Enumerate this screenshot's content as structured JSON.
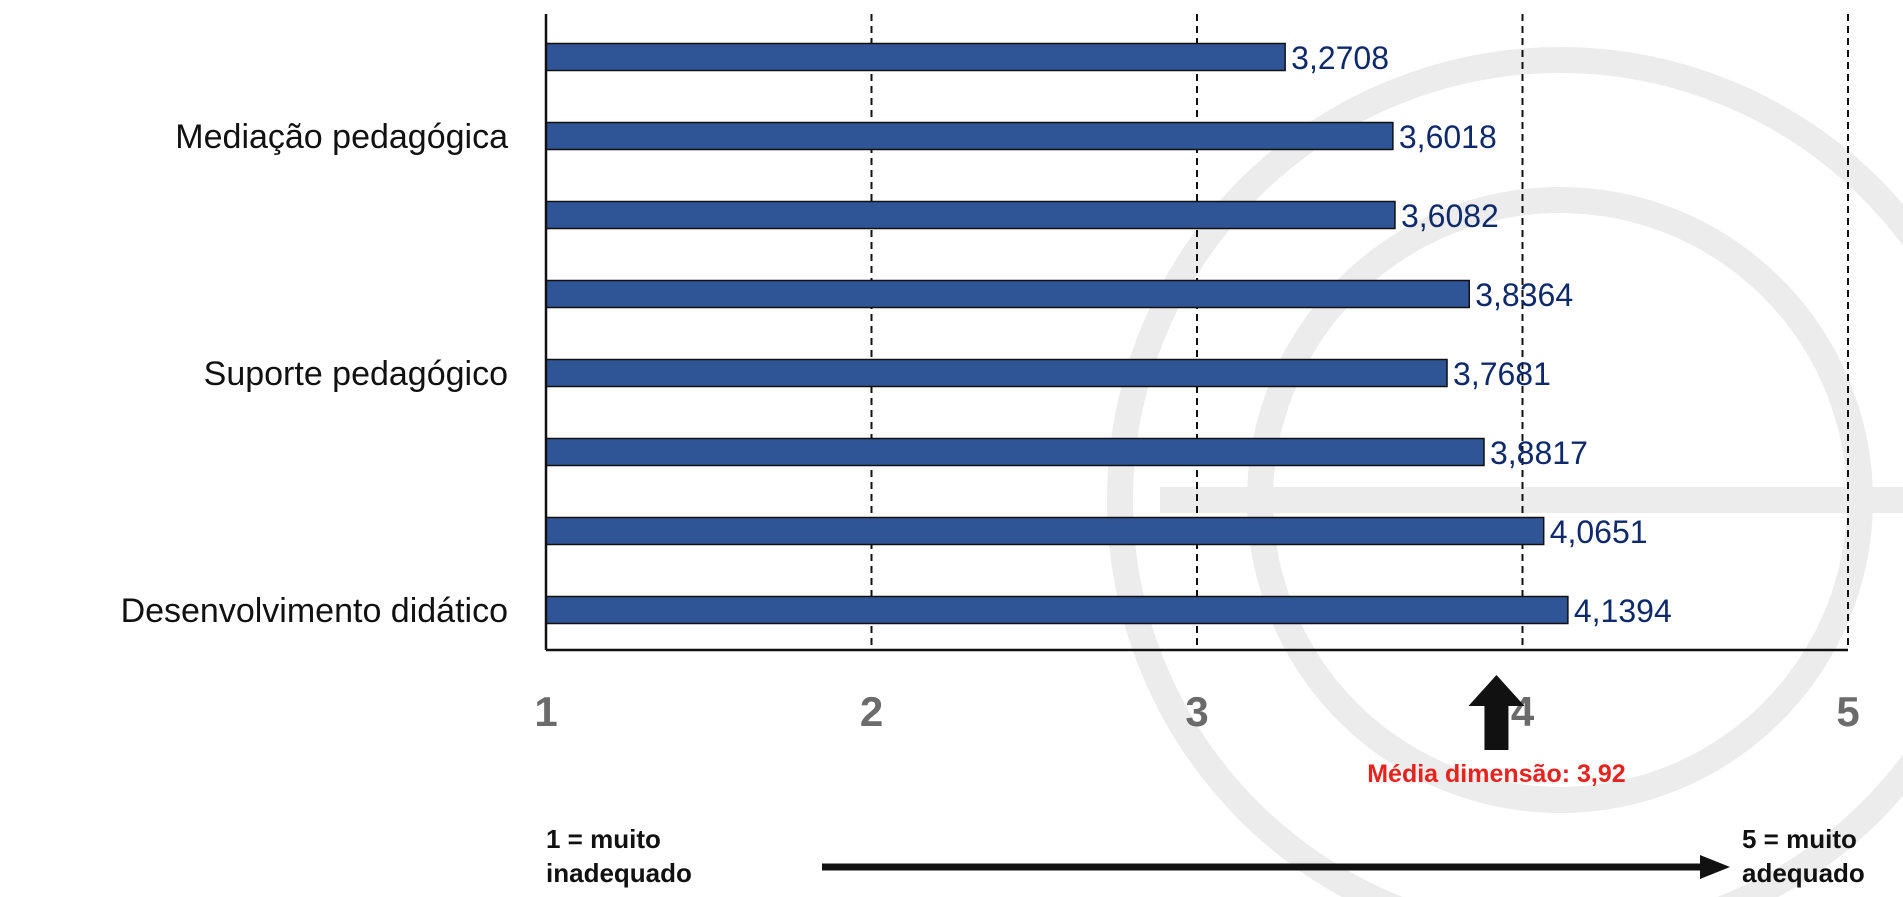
{
  "chart_data": {
    "type": "bar",
    "orientation": "horizontal",
    "values": [
      3.2708,
      3.6018,
      3.6082,
      3.8364,
      3.7681,
      3.8817,
      4.0651,
      4.1394
    ],
    "value_labels": [
      "3,2708",
      "3,6018",
      "3,6082",
      "3,8364",
      "3,7681",
      "3,8817",
      "4,0651",
      "4,1394"
    ],
    "category_labels": [
      {
        "text": "Mediação pedagógica",
        "row": 1
      },
      {
        "text": "Suporte pedagógico",
        "row": 4
      },
      {
        "text": "Desenvolvimento didático",
        "row": 7
      }
    ],
    "xlim": [
      1,
      5
    ],
    "xticks": [
      "1",
      "2",
      "3",
      "4",
      "5"
    ],
    "grid": "vertical dashed",
    "colors": {
      "bar": "#2f5597",
      "value_label": "#0f2a6b",
      "average": "#e8231e",
      "tick": "#6b6b6b"
    },
    "average": {
      "value": 3.92,
      "label": "Média dimensão: 3,92"
    },
    "scale_legend": {
      "low": [
        "1 = muito",
        "inadequado"
      ],
      "high": [
        "5 = muito",
        "adequado"
      ]
    }
  }
}
